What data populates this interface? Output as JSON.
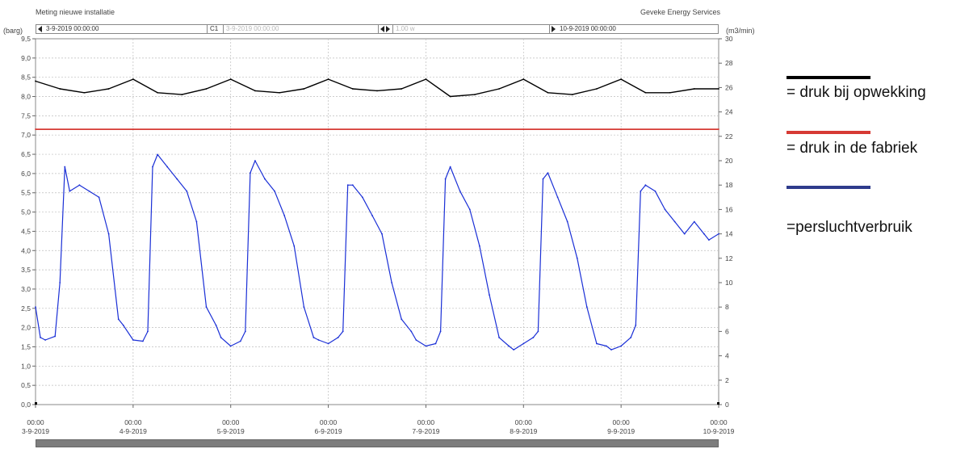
{
  "header": {
    "title": "Meting nieuwe installatie",
    "company": "Geveke Energy Services",
    "left_unit": "(barg)",
    "right_unit": "(m3/min)"
  },
  "toolbar": {
    "start": "3-9-2019 00:00:00",
    "cursor_label": "C1",
    "cursor_value": "3-9-2019 00:00:00",
    "step": "1.00 w",
    "end": "10-9-2019 00:00:00"
  },
  "colors": {
    "druk_opwekking": "#000000",
    "druk_fabriek": "#d63a34",
    "verbruik": "#1a2fd6",
    "legend_verbruik": "#2e3b8c"
  },
  "legend": [
    {
      "label": "= druk bij opwekking",
      "color": "#000000"
    },
    {
      "label": "= druk in de fabriek",
      "color": "#d63a34"
    },
    {
      "label": "=persluchtverbruik",
      "color": "#2e3b8c"
    }
  ],
  "chart_data": {
    "type": "line",
    "x_ticks": [
      {
        "time": "00:00",
        "date": "3-9-2019"
      },
      {
        "time": "00:00",
        "date": "4-9-2019"
      },
      {
        "time": "00:00",
        "date": "5-9-2019"
      },
      {
        "time": "00:00",
        "date": "6-9-2019"
      },
      {
        "time": "00:00",
        "date": "7-9-2019"
      },
      {
        "time": "00:00",
        "date": "8-9-2019"
      },
      {
        "time": "00:00",
        "date": "9-9-2019"
      },
      {
        "time": "00:00",
        "date": "10-9-2019"
      }
    ],
    "y_left": {
      "unit": "(barg)",
      "range": [
        0,
        9.5
      ],
      "ticks": [
        "0,0",
        "0,5",
        "1,0",
        "1,5",
        "2,0",
        "2,5",
        "3,0",
        "3,5",
        "4,0",
        "4,5",
        "5,0",
        "5,5",
        "6,0",
        "6,5",
        "7,0",
        "7,5",
        "8,0",
        "8,5",
        "9,0",
        "9,5"
      ]
    },
    "y_right": {
      "unit": "(m3/min)",
      "range": [
        0,
        30
      ],
      "ticks": [
        "0",
        "2",
        "4",
        "6",
        "8",
        "10",
        "12",
        "14",
        "16",
        "18",
        "20",
        "22",
        "24",
        "26",
        "28",
        "30"
      ]
    },
    "grid": true,
    "legend_position": "right",
    "series": [
      {
        "name": "druk bij opwekking",
        "axis": "left",
        "x": [
          0,
          0.25,
          0.5,
          0.75,
          1,
          1.25,
          1.5,
          1.75,
          2,
          2.25,
          2.5,
          2.75,
          3,
          3.25,
          3.5,
          3.75,
          4,
          4.25,
          4.5,
          4.75,
          5,
          5.25,
          5.5,
          5.75,
          6,
          6.25,
          6.5,
          6.75,
          7
        ],
        "values": [
          8.4,
          8.2,
          8.1,
          8.2,
          8.45,
          8.1,
          8.05,
          8.2,
          8.45,
          8.15,
          8.1,
          8.2,
          8.45,
          8.2,
          8.15,
          8.2,
          8.45,
          8.0,
          8.05,
          8.2,
          8.45,
          8.1,
          8.05,
          8.2,
          8.45,
          8.1,
          8.1,
          8.2,
          8.2
        ]
      },
      {
        "name": "druk in de fabriek",
        "axis": "left",
        "x": [
          0,
          1,
          2,
          3,
          4,
          5,
          6,
          7
        ],
        "values": [
          7.15,
          7.15,
          7.15,
          7.15,
          7.15,
          7.15,
          7.15,
          7.15
        ]
      },
      {
        "name": "persluchtverbruik",
        "axis": "right",
        "x": [
          0,
          0.05,
          0.1,
          0.2,
          0.25,
          0.3,
          0.35,
          0.45,
          0.55,
          0.65,
          0.75,
          0.85,
          0.9,
          1.0,
          1.1,
          1.15,
          1.2,
          1.25,
          1.35,
          1.45,
          1.55,
          1.65,
          1.75,
          1.85,
          1.9,
          2.0,
          2.1,
          2.15,
          2.2,
          2.25,
          2.35,
          2.45,
          2.55,
          2.65,
          2.75,
          2.85,
          2.9,
          3.0,
          3.1,
          3.15,
          3.2,
          3.25,
          3.35,
          3.45,
          3.55,
          3.65,
          3.75,
          3.85,
          3.9,
          4.0,
          4.1,
          4.15,
          4.2,
          4.25,
          4.35,
          4.45,
          4.55,
          4.65,
          4.75,
          4.85,
          4.9,
          5.0,
          5.1,
          5.15,
          5.2,
          5.25,
          5.35,
          5.45,
          5.55,
          5.65,
          5.75,
          5.85,
          5.9,
          6.0,
          6.1,
          6.15,
          6.2,
          6.25,
          6.35,
          6.45,
          6.55,
          6.65,
          6.75,
          6.85,
          6.9,
          7.0
        ],
        "values": [
          8,
          5.5,
          5.3,
          5.6,
          10,
          19.5,
          17.5,
          18,
          17.5,
          17,
          14,
          7,
          6.5,
          5.3,
          5.2,
          6,
          19.5,
          20.5,
          19.5,
          18.5,
          17.5,
          15,
          8,
          6.5,
          5.5,
          4.8,
          5.2,
          6,
          19,
          20,
          18.5,
          17.5,
          15.5,
          13,
          8,
          5.5,
          5.3,
          5.0,
          5.5,
          6,
          18,
          18,
          17,
          15.5,
          14,
          10,
          7,
          6,
          5.3,
          4.8,
          5.0,
          6,
          18.5,
          19.5,
          17.5,
          16,
          13,
          9,
          5.5,
          4.8,
          4.5,
          5.0,
          5.5,
          6,
          18.5,
          19,
          17,
          15,
          12,
          8,
          5,
          4.8,
          4.5,
          4.8,
          5.5,
          6.5,
          17.5,
          18,
          17.5,
          16,
          15,
          14,
          15,
          14,
          13.5,
          14
        ]
      }
    ]
  }
}
